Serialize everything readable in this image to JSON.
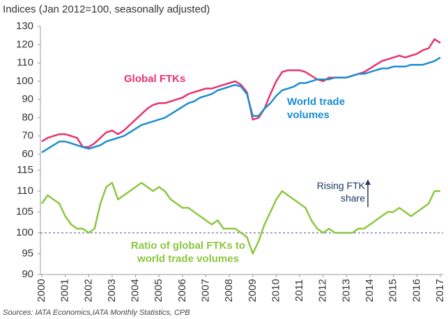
{
  "chart_data": {
    "type": "line",
    "title": "Indices (Jan 2012=100, seasonally adjusted)",
    "source": "Sources: IATA Economics,IATA Monthly Statistics, CPB",
    "annotation": "Rising FTK share",
    "xlim": [
      2000,
      2017
    ],
    "xticks": [
      2000,
      2001,
      2002,
      2003,
      2004,
      2005,
      2006,
      2007,
      2008,
      2009,
      2010,
      2011,
      2012,
      2013,
      2014,
      2015,
      2016,
      2017
    ],
    "x": [
      2000,
      2000.25,
      2000.5,
      2000.75,
      2001,
      2001.25,
      2001.5,
      2001.75,
      2002,
      2002.25,
      2002.5,
      2002.75,
      2003,
      2003.25,
      2003.5,
      2003.75,
      2004,
      2004.25,
      2004.5,
      2004.75,
      2005,
      2005.25,
      2005.5,
      2005.75,
      2006,
      2006.25,
      2006.5,
      2006.75,
      2007,
      2007.25,
      2007.5,
      2007.75,
      2008,
      2008.25,
      2008.5,
      2008.75,
      2009,
      2009.25,
      2009.5,
      2009.75,
      2010,
      2010.25,
      2010.5,
      2010.75,
      2011,
      2011.25,
      2011.5,
      2011.75,
      2012,
      2012.25,
      2012.5,
      2012.75,
      2013,
      2013.25,
      2013.5,
      2013.75,
      2014,
      2014.25,
      2014.5,
      2014.75,
      2015,
      2015.25,
      2015.5,
      2015.75,
      2016,
      2016.25,
      2016.5,
      2016.75,
      2017
    ],
    "panels": [
      {
        "ylim": [
          60,
          130
        ],
        "yticks": [
          60,
          70,
          80,
          90,
          100,
          110,
          120,
          130
        ],
        "series": [
          {
            "name": "Global FTKs",
            "color": "#e5336c",
            "values": [
              67,
              69,
              70,
              71,
              71,
              70,
              69,
              64,
              64,
              66,
              69,
              72,
              73,
              71,
              73,
              76,
              79,
              82,
              85,
              87,
              88,
              88,
              89,
              90,
              91,
              93,
              94,
              95,
              96,
              96,
              97,
              98,
              99,
              100,
              98,
              94,
              79,
              80,
              85,
              93,
              100,
              105,
              106,
              106,
              106,
              105,
              103,
              101,
              100,
              102,
              102,
              102,
              102,
              103,
              104,
              105,
              107,
              109,
              111,
              112,
              113,
              114,
              113,
              114,
              115,
              117,
              118,
              123,
              121
            ]
          },
          {
            "name": "World trade volumes",
            "color": "#1b8dd0",
            "values": [
              61,
              63,
              65,
              67,
              67,
              66,
              65,
              64,
              63,
              64,
              65,
              67,
              68,
              69,
              70,
              72,
              74,
              76,
              77,
              78,
              79,
              80,
              82,
              84,
              86,
              88,
              89,
              91,
              92,
              93,
              95,
              96,
              97,
              98,
              97,
              93,
              81,
              81,
              85,
              88,
              92,
              95,
              96,
              97,
              99,
              99,
              100,
              101,
              101,
              101,
              102,
              102,
              102,
              103,
              104,
              104,
              105,
              106,
              107,
              107,
              108,
              108,
              108,
              109,
              109,
              109,
              110,
              111,
              113
            ]
          }
        ]
      },
      {
        "ylim": [
          90,
          115
        ],
        "yticks": [
          90,
          95,
          100,
          105,
          110,
          115
        ],
        "ref_line": 100,
        "series": [
          {
            "name": "Ratio of global FTKs to world trade volumes",
            "color": "#8cc63f",
            "values": [
              107,
              109,
              108,
              107,
              104,
              102,
              101,
              101,
              100,
              101,
              107,
              111,
              112,
              108,
              109,
              110,
              111,
              112,
              111,
              110,
              111,
              110,
              108,
              107,
              106,
              106,
              105,
              104,
              103,
              102,
              103,
              101,
              101,
              101,
              100,
              99,
              95,
              98,
              102,
              105,
              108,
              110,
              109,
              108,
              107,
              106,
              103,
              101,
              100,
              101,
              100,
              100,
              100,
              100,
              101,
              101,
              102,
              103,
              104,
              105,
              105,
              106,
              105,
              104,
              105,
              106,
              107,
              110,
              110
            ]
          }
        ]
      }
    ]
  }
}
